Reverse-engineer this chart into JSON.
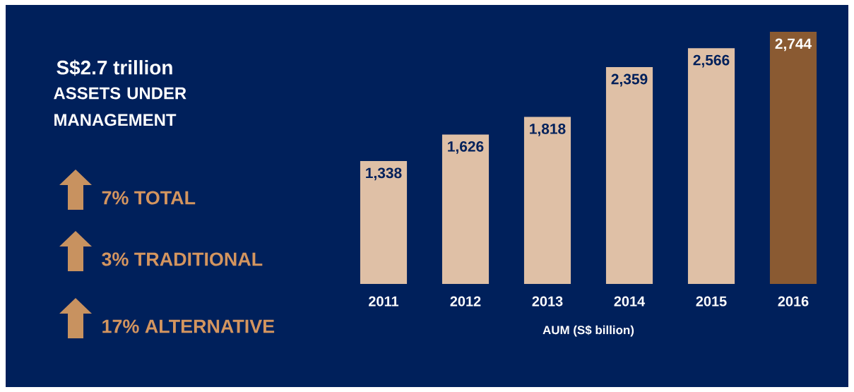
{
  "chart_data": {
    "type": "bar",
    "title": "S$2.7 trillion",
    "subtitle": "ASSETS UNDER MANAGEMENT",
    "categories": [
      "2011",
      "2012",
      "2013",
      "2014",
      "2015",
      "2016"
    ],
    "values": [
      1338,
      1626,
      1818,
      2359,
      2566,
      2744
    ],
    "colors": [
      "#dfc0a6",
      "#dfc0a6",
      "#dfc0a6",
      "#dfc0a6",
      "#dfc0a6",
      "#8a5a32"
    ],
    "value_labels": [
      "1,338",
      "1,626",
      "1,818",
      "2,359",
      "2,566",
      "2,744"
    ],
    "xlabel": "AUM (S$ billion)",
    "annotations": [
      "7% TOTAL",
      "3% TRADITIONAL",
      "17% ALTERNATIVE"
    ],
    "grid": false
  }
}
